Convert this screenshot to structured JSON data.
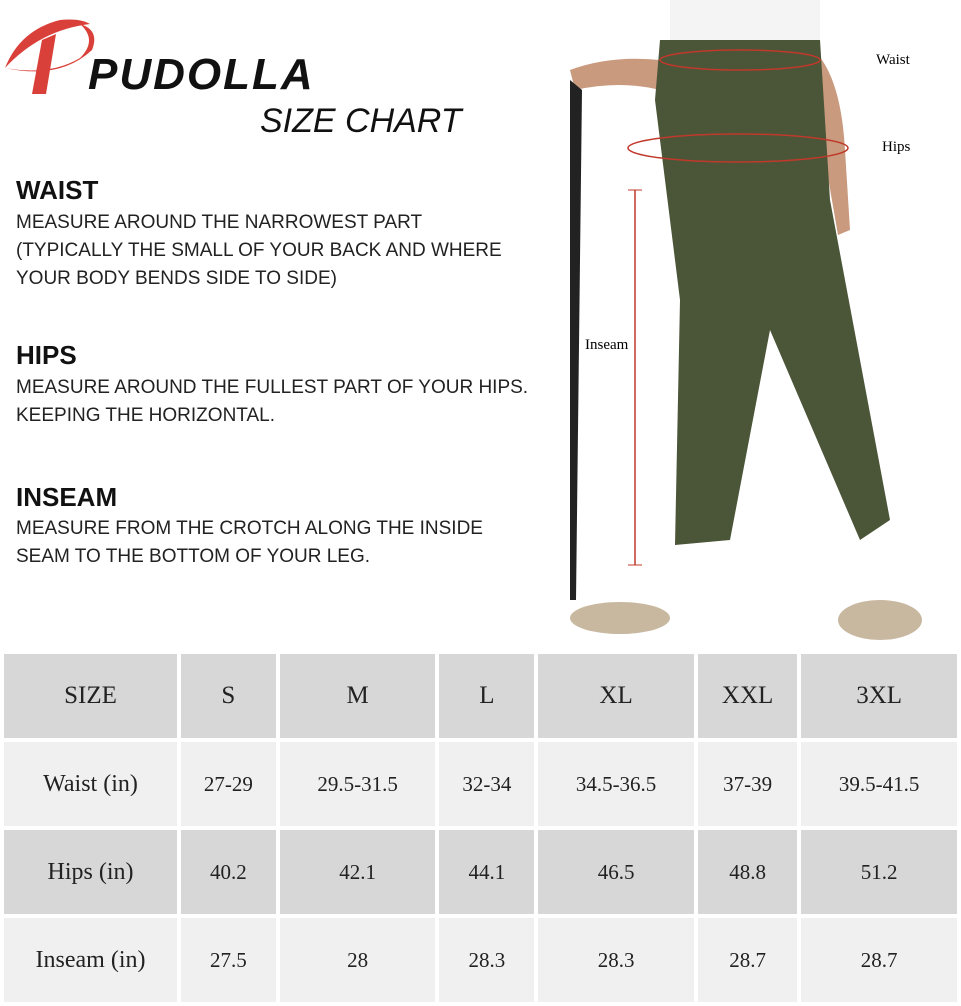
{
  "brand": {
    "name": "PUDOLLA",
    "subtitle": "SIZE CHART",
    "accent": "#d9403a"
  },
  "sections": [
    {
      "title": "WAIST",
      "lines": [
        "MEASURE AROUND THE NARROWEST PART",
        "(TYPICALLY THE SMALL OF YOUR BACK AND WHERE",
        "YOUR BODY BENDS SIDE TO SIDE)"
      ]
    },
    {
      "title": "HIPS",
      "lines": [
        "MEASURE AROUND THE FULLEST PART OF YOUR HIPS.",
        "KEEPING THE HORIZONTAL."
      ]
    },
    {
      "title": "INSEAM",
      "lines": [
        "MEASURE FROM THE CROTCH ALONG THE INSIDE",
        "SEAM TO THE BOTTOM OF YOUR LEG."
      ]
    }
  ],
  "photo": {
    "labels": {
      "waist": "Waist",
      "hips": "Hips",
      "inseam": "Inseam"
    },
    "pants_color": "#4b5538"
  },
  "table": {
    "header": [
      "SIZE",
      "S",
      "M",
      "L",
      "XL",
      "XXL",
      "3XL"
    ],
    "rows": [
      [
        "Waist (in)",
        "27-29",
        "29.5-31.5",
        "32-34",
        "34.5-36.5",
        "37-39",
        "39.5-41.5"
      ],
      [
        "Hips (in)",
        "40.2",
        "42.1",
        "44.1",
        "46.5",
        "48.8",
        "51.2"
      ],
      [
        "Inseam (in)",
        "27.5",
        "28",
        "28.3",
        "28.3",
        "28.7",
        "28.7"
      ]
    ]
  }
}
